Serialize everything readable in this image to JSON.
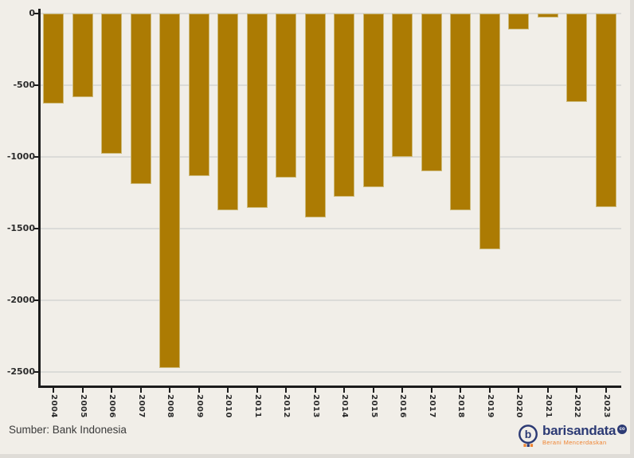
{
  "chart_data": {
    "type": "bar",
    "title": "",
    "xlabel": "",
    "ylabel": "",
    "categories": [
      "2004",
      "2005",
      "2006",
      "2007",
      "2008",
      "2009",
      "2010",
      "2011",
      "2012",
      "2013",
      "2014",
      "2015",
      "2016",
      "2017",
      "2018",
      "2019",
      "2020",
      "2021",
      "2022",
      "2023"
    ],
    "values": [
      -630,
      -585,
      -980,
      -1190,
      -2470,
      -1135,
      -1370,
      -1355,
      -1145,
      -1420,
      -1275,
      -1210,
      -1000,
      -1100,
      -1370,
      -1645,
      -110,
      -25,
      -615,
      -1350
    ],
    "ylim": [
      -2500,
      0
    ],
    "yticks": [
      0,
      -500,
      -1000,
      -1500,
      -2000,
      -2500
    ],
    "grid": true,
    "legend": null,
    "bar_color": "#AC7B03"
  },
  "footer": {
    "source_label": "Sumber: Bank Indonesia",
    "logo": {
      "brand": "barisandata",
      "badge": "co",
      "tagline": "Berani Mencerdaskan",
      "colors": {
        "navy": "#2C3A74",
        "orange": "#EF8432"
      }
    }
  }
}
